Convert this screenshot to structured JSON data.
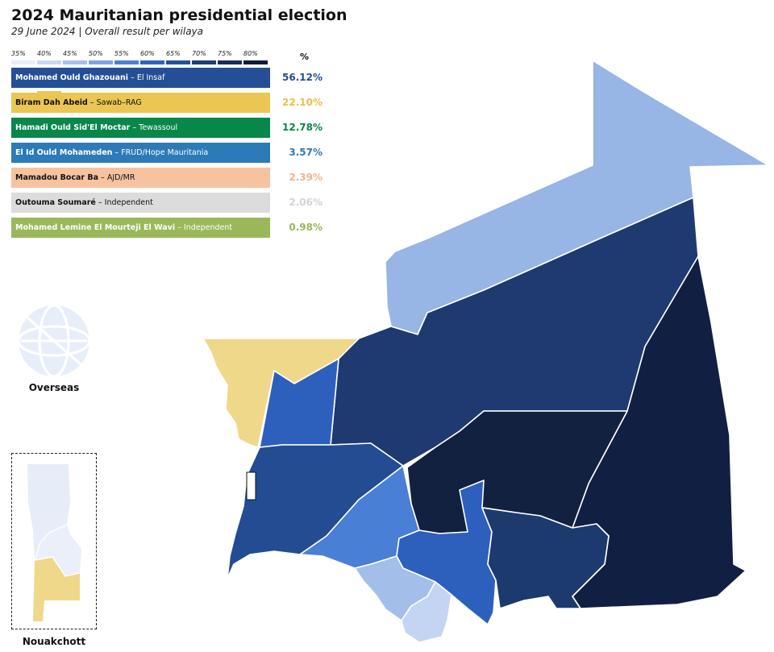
{
  "header": {
    "title": "2024 Mauritanian presidential election",
    "subtitle": "29 June 2024 | Overall result per wilaya"
  },
  "scale": {
    "labels": [
      "35%",
      "40%",
      "45%",
      "50%",
      "55%",
      "60%",
      "65%",
      "70%",
      "75%",
      "80%"
    ],
    "colors": [
      "#e9eef9",
      "#c9d8f3",
      "#a6c0ea",
      "#7fa3e1",
      "#4d7fd6",
      "#2f63c0",
      "#24509e",
      "#1d3f7a",
      "#162d5a",
      "#101c38"
    ]
  },
  "results": {
    "percent_header": "%",
    "candidates": [
      {
        "name": "Mohamed Ould Ghazouani",
        "party": " – El Insaf",
        "pct": "56.12%",
        "color": "#244e96",
        "text_color": "#ffffff",
        "pct_color": "#244e96"
      },
      {
        "name": "Biram Dah Abeid",
        "party": " – Sawab–RAG",
        "pct": "22.10%",
        "color": "#ebc653",
        "text_color": "#111111",
        "pct_color": "#e8c04c"
      },
      {
        "name": "Hamadi Ould Sid'El Moctar",
        "party": " – Tewassoul",
        "pct": "12.78%",
        "color": "#08874a",
        "text_color": "#ffffff",
        "pct_color": "#08874a"
      },
      {
        "name": "El Id Ould Mohameden",
        "party": " – FRUD/Hope Mauritania",
        "pct": "3.57%",
        "color": "#2d7ab8",
        "text_color": "#ffffff",
        "pct_color": "#2d7ab8"
      },
      {
        "name": "Mamadou Bocar Ba",
        "party": " – AJD/MR",
        "pct": "2.39%",
        "color": "#f7c2a0",
        "text_color": "#111111",
        "pct_color": "#f2b48c"
      },
      {
        "name": "Outouma Soumaré",
        "party": " – Independent",
        "pct": "2.06%",
        "color": "#dcdcdc",
        "text_color": "#111111",
        "pct_color": "#d3d3d3"
      },
      {
        "name": "Mohamed Lemine El Mourteji El Wavi",
        "party": " – Independent",
        "pct": "0.98%",
        "color": "#9ab85a",
        "text_color": "#ffffff",
        "pct_color": "#9ab85a"
      }
    ]
  },
  "map": {
    "overseas_label": "Overseas",
    "nouakchott_label": "Nouakchott",
    "regions": [
      {
        "id": "tiris-zemmour",
        "color": "#97b5e5"
      },
      {
        "id": "adrar",
        "color": "#1e3a70"
      },
      {
        "id": "hodh-ech-chargui",
        "color": "#101f42"
      },
      {
        "id": "dakhlet-nouadhibou",
        "color": "#f0d88b"
      },
      {
        "id": "inchiri",
        "color": "#2d60bd"
      },
      {
        "id": "tagant",
        "color": "#12213f"
      },
      {
        "id": "trarza",
        "color": "#234c93"
      },
      {
        "id": "brakna",
        "color": "#4a7fd6"
      },
      {
        "id": "assaba",
        "color": "#2d60bd"
      },
      {
        "id": "hodh-el-gharbi",
        "color": "#1d3a6e"
      },
      {
        "id": "gorgol",
        "color": "#a3bfe9"
      },
      {
        "id": "guidimaka",
        "color": "#c3d5f2"
      },
      {
        "id": "nouakchott-north",
        "color": "#e6ecf8"
      },
      {
        "id": "nouakchott-west",
        "color": "#eaeff9"
      },
      {
        "id": "nouakchott-south",
        "color": "#f0d88b"
      },
      {
        "id": "nouakchott-city-marker",
        "color": "#ffffff"
      },
      {
        "id": "overseas-globe",
        "color": "#e8eef9"
      }
    ]
  }
}
